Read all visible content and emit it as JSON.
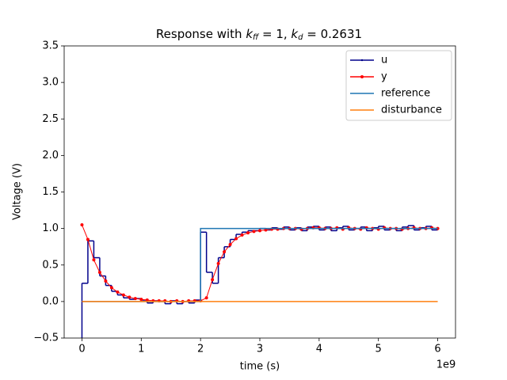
{
  "chart_data": {
    "type": "line",
    "title": [
      "Response with ",
      "k",
      "ff",
      " = 1, ",
      "k",
      "d",
      " = 0.2631"
    ],
    "x_label": "time (s)",
    "y_label": "Voltage (V)",
    "x_offset_label": "1e9",
    "xlim": [
      -0.3,
      6.3
    ],
    "ylim": [
      -0.5,
      3.5
    ],
    "xticks": [
      0,
      1,
      2,
      3,
      4,
      5,
      6
    ],
    "yticks": [
      {
        "value": -0.5,
        "label": "−0.5"
      },
      {
        "value": 0,
        "label": "0.0"
      },
      {
        "value": 0.5,
        "label": "0.5"
      },
      {
        "value": 1,
        "label": "1.0"
      },
      {
        "value": 1.5,
        "label": "1.5"
      },
      {
        "value": 2,
        "label": "2.0"
      },
      {
        "value": 2.5,
        "label": "2.5"
      },
      {
        "value": 3,
        "label": "3.0"
      },
      {
        "value": 3.5,
        "label": "3.5"
      }
    ],
    "legend": "upper right",
    "x": [
      0,
      0.1,
      0.2,
      0.3,
      0.4,
      0.5,
      0.6,
      0.7,
      0.8,
      0.9,
      1.0,
      1.1,
      1.2,
      1.3,
      1.4,
      1.5,
      1.6,
      1.7,
      1.8,
      1.9,
      2.0,
      2.1,
      2.2,
      2.3,
      2.4,
      2.5,
      2.6,
      2.7,
      2.8,
      2.9,
      3.0,
      3.1,
      3.2,
      3.3,
      3.4,
      3.5,
      3.6,
      3.7,
      3.8,
      3.9,
      4.0,
      4.1,
      4.2,
      4.3,
      4.4,
      4.5,
      4.6,
      4.7,
      4.8,
      4.9,
      5.0,
      5.1,
      5.2,
      5.3,
      5.4,
      5.5,
      5.6,
      5.7,
      5.8,
      5.9,
      6.0
    ],
    "series": [
      {
        "name": "u",
        "color": "#00008b",
        "style": "step",
        "values": [
          -0.5,
          0.25,
          0.83,
          0.6,
          0.35,
          0.22,
          0.14,
          0.09,
          0.05,
          0.03,
          0.04,
          0.02,
          -0.02,
          0.01,
          0.0,
          -0.03,
          0.01,
          -0.03,
          0.0,
          -0.02,
          0.02,
          0.95,
          0.4,
          0.25,
          0.6,
          0.75,
          0.85,
          0.92,
          0.95,
          0.97,
          0.97,
          1.0,
          0.98,
          1.01,
          0.99,
          1.02,
          0.98,
          1.01,
          0.97,
          1.02,
          1.03,
          0.98,
          1.02,
          0.97,
          1.01,
          1.03,
          0.98,
          1.0,
          1.02,
          0.97,
          1.01,
          1.03,
          0.98,
          1.0,
          0.97,
          1.02,
          1.04,
          0.98,
          1.01,
          1.03,
          0.98
        ]
      },
      {
        "name": "y",
        "color": "#ff0000",
        "style": "dots",
        "values": [
          1.05,
          0.85,
          0.57,
          0.4,
          0.28,
          0.19,
          0.13,
          0.09,
          0.06,
          0.04,
          0.03,
          0.02,
          0.01,
          0.01,
          0.01,
          0.0,
          0.01,
          0.0,
          0.01,
          0.01,
          0.01,
          0.05,
          0.3,
          0.52,
          0.68,
          0.78,
          0.86,
          0.91,
          0.94,
          0.96,
          0.97,
          0.98,
          0.99,
          0.99,
          1.0,
          1.0,
          1.0,
          0.99,
          1.0,
          1.01,
          1.01,
          1.0,
          1.0,
          1.01,
          0.99,
          1.01,
          1.0,
          0.99,
          1.01,
          1.0,
          0.99,
          1.01,
          1.0,
          1.0,
          0.99,
          1.0,
          1.01,
          1.0,
          1.0,
          1.01,
          1.0
        ]
      },
      {
        "name": "reference",
        "color": "#1f77b4",
        "x": [
          0,
          2,
          2,
          6
        ],
        "values": [
          0,
          0,
          1,
          1
        ]
      },
      {
        "name": "disturbance",
        "color": "#ff7f0e",
        "x": [
          0,
          6
        ],
        "values": [
          0,
          0
        ]
      }
    ]
  }
}
